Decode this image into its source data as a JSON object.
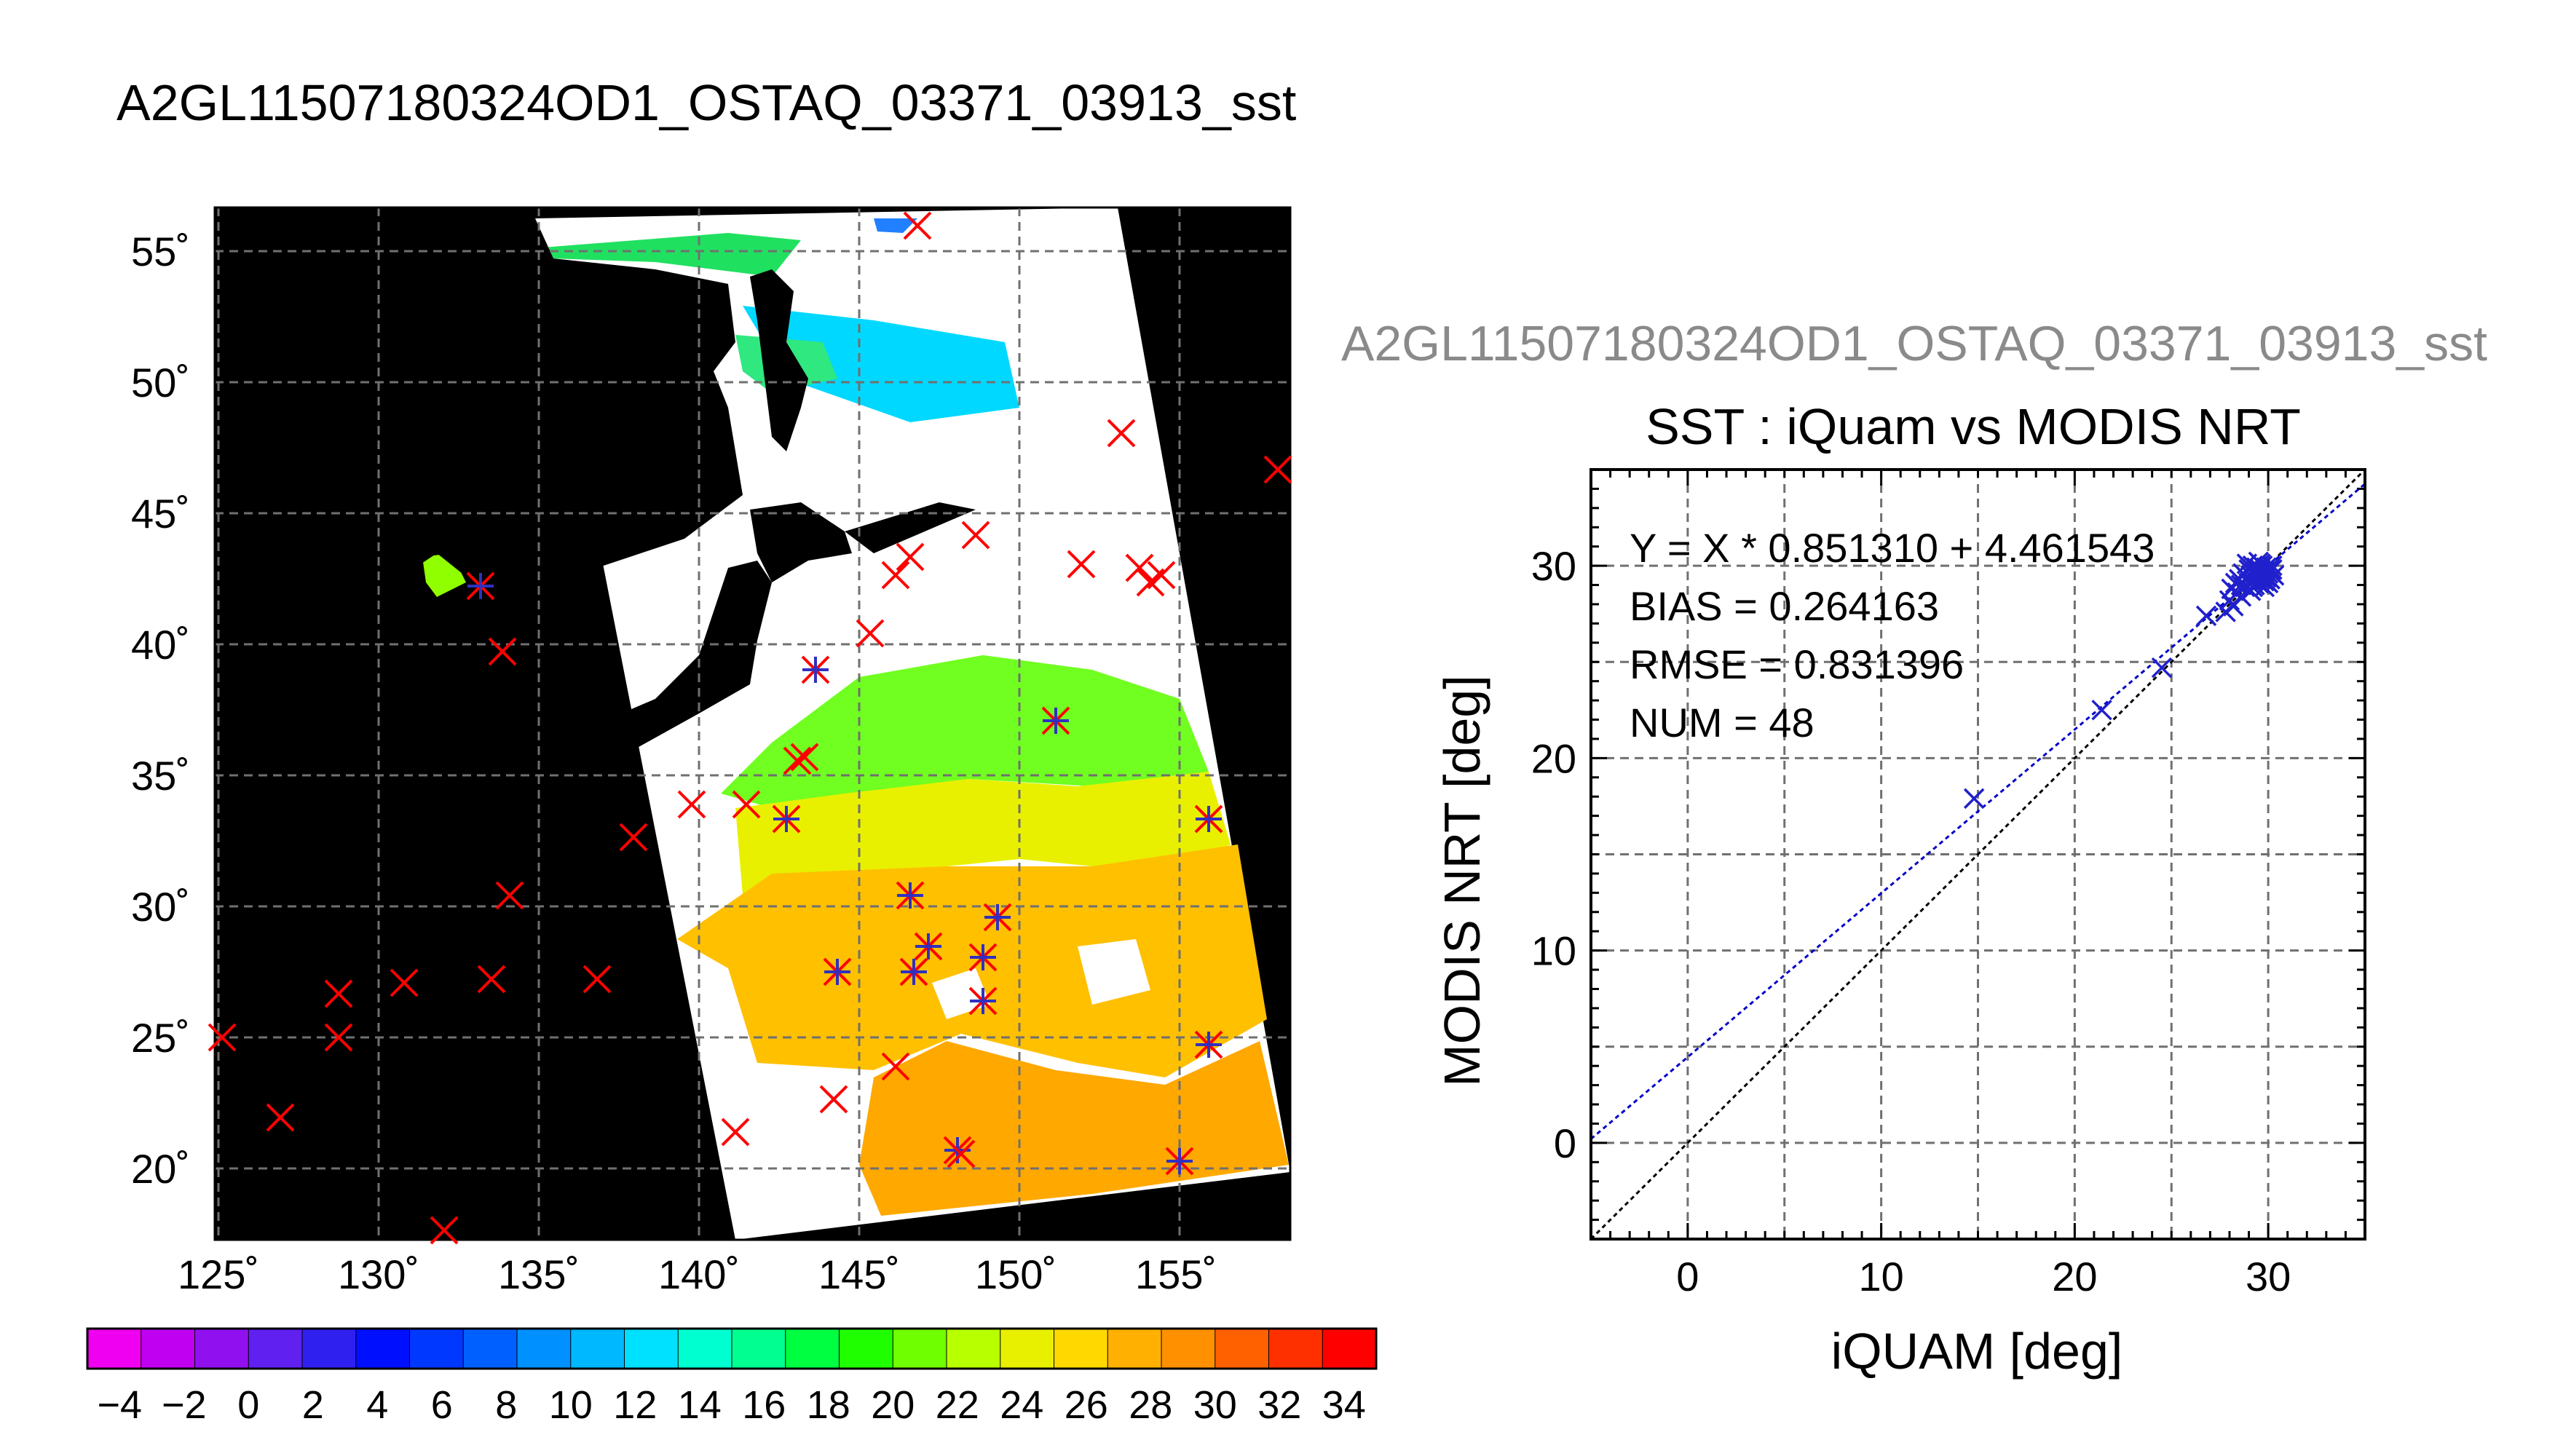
{
  "title": "A2GL11507180324OD1_OSTAQ_03371_03913_sst",
  "map": {
    "lat_labels": [
      "55˚",
      "50˚",
      "45˚",
      "40˚",
      "35˚",
      "30˚",
      "25˚",
      "20˚"
    ],
    "lon_labels": [
      "125˚",
      "130˚",
      "135˚",
      "140˚",
      "145˚",
      "150˚",
      "155˚"
    ],
    "lat_values": [
      55,
      50,
      45,
      40,
      35,
      30,
      25,
      20
    ],
    "lon_values": [
      125,
      130,
      135,
      140,
      145,
      150,
      155
    ],
    "extent": {
      "lon": [
        124.8,
        158.4
      ],
      "lat": [
        17.5,
        56.5
      ]
    },
    "land_color": "#000000",
    "cloud_color": "#ffffff",
    "marker_iquam_color": "#ff0000",
    "marker_modis_color": "#3030c0"
  },
  "colorbar": {
    "range": [
      -5,
      35
    ],
    "labels": [
      "−4",
      "−2",
      "0",
      "2",
      "4",
      "6",
      "8",
      "10",
      "12",
      "14",
      "16",
      "18",
      "20",
      "22",
      "24",
      "26",
      "28",
      "30",
      "32",
      "34"
    ],
    "label_values": [
      -4,
      -2,
      0,
      2,
      4,
      6,
      8,
      10,
      12,
      14,
      16,
      18,
      20,
      22,
      24,
      26,
      28,
      30,
      32,
      34
    ],
    "colors": [
      "#f000f0",
      "#c000f0",
      "#9010f0",
      "#6020f0",
      "#3020f0",
      "#0010ff",
      "#0038ff",
      "#0060ff",
      "#0090ff",
      "#00b8ff",
      "#00e0ff",
      "#00ffd0",
      "#00ff90",
      "#00ff40",
      "#20ff00",
      "#70ff00",
      "#b8ff00",
      "#e8f000",
      "#ffd800",
      "#ffb000",
      "#ff9000",
      "#ff6000",
      "#ff3000",
      "#ff0000"
    ]
  },
  "chart_data": {
    "type": "scatter",
    "subtitle": "A2GL11507180324OD1_OSTAQ_03371_03913_sst",
    "title": "SST : iQuam vs MODIS NRT",
    "xlabel": "iQUAM [deg]",
    "ylabel": "MODIS NRT [deg]",
    "xlim": [
      -5,
      35
    ],
    "ylim": [
      -5,
      35
    ],
    "x_ticks": [
      0,
      10,
      20,
      30
    ],
    "y_ticks": [
      0,
      10,
      20,
      30
    ],
    "grid": true,
    "annotations": [
      "Y = X * 0.851310 + 4.461543",
      "BIAS = 0.264163",
      "RMSE = 0.831396",
      "NUM = 48"
    ],
    "regression": {
      "slope": 0.85131,
      "intercept": 4.461543,
      "color": "#0000cc"
    },
    "one_to_one": {
      "color": "#000000"
    },
    "marker_color": "#2020cc",
    "points": [
      {
        "x": 14.8,
        "y": 17.9
      },
      {
        "x": 21.4,
        "y": 22.5
      },
      {
        "x": 24.5,
        "y": 24.7
      },
      {
        "x": 26.8,
        "y": 27.4
      },
      {
        "x": 27.8,
        "y": 27.6
      },
      {
        "x": 28.0,
        "y": 28.2
      },
      {
        "x": 28.1,
        "y": 28.8
      },
      {
        "x": 28.3,
        "y": 29.1
      },
      {
        "x": 28.4,
        "y": 28.6
      },
      {
        "x": 28.5,
        "y": 29.3
      },
      {
        "x": 28.6,
        "y": 29.0
      },
      {
        "x": 28.7,
        "y": 29.6
      },
      {
        "x": 28.8,
        "y": 28.9
      },
      {
        "x": 28.9,
        "y": 29.4
      },
      {
        "x": 29.0,
        "y": 29.8
      },
      {
        "x": 29.0,
        "y": 29.1
      },
      {
        "x": 29.1,
        "y": 29.5
      },
      {
        "x": 29.2,
        "y": 30.0
      },
      {
        "x": 29.2,
        "y": 29.2
      },
      {
        "x": 29.3,
        "y": 29.7
      },
      {
        "x": 29.3,
        "y": 29.0
      },
      {
        "x": 29.4,
        "y": 29.4
      },
      {
        "x": 29.4,
        "y": 29.9
      },
      {
        "x": 29.5,
        "y": 29.6
      },
      {
        "x": 29.5,
        "y": 29.1
      },
      {
        "x": 29.6,
        "y": 29.8
      },
      {
        "x": 29.6,
        "y": 29.3
      },
      {
        "x": 29.7,
        "y": 30.0
      },
      {
        "x": 29.7,
        "y": 29.5
      },
      {
        "x": 29.8,
        "y": 29.2
      },
      {
        "x": 29.8,
        "y": 29.7
      },
      {
        "x": 29.9,
        "y": 29.9
      },
      {
        "x": 29.9,
        "y": 29.4
      },
      {
        "x": 30.0,
        "y": 29.6
      },
      {
        "x": 30.0,
        "y": 29.1
      },
      {
        "x": 30.1,
        "y": 29.8
      },
      {
        "x": 30.1,
        "y": 29.3
      },
      {
        "x": 30.2,
        "y": 30.0
      },
      {
        "x": 29.1,
        "y": 28.7
      },
      {
        "x": 28.9,
        "y": 30.1
      },
      {
        "x": 29.5,
        "y": 30.2
      },
      {
        "x": 28.6,
        "y": 28.4
      },
      {
        "x": 29.8,
        "y": 28.9
      },
      {
        "x": 30.3,
        "y": 29.5
      },
      {
        "x": 29.2,
        "y": 28.9
      },
      {
        "x": 28.2,
        "y": 27.9
      },
      {
        "x": 29.6,
        "y": 30.1
      },
      {
        "x": 30.2,
        "y": 29.8
      }
    ]
  }
}
